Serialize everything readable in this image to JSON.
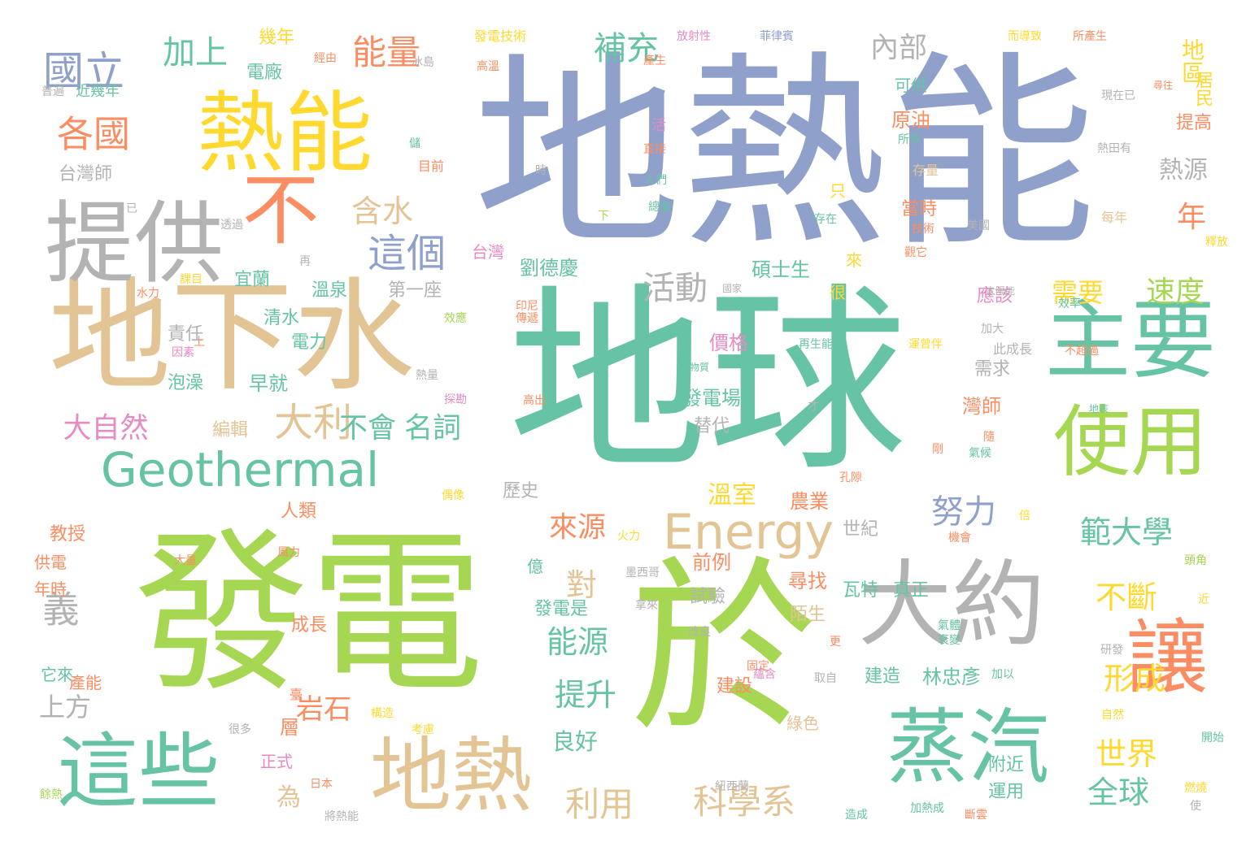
{
  "palette": {
    "blue": "#8fa0cb",
    "teal": "#66c3a5",
    "green": "#a6d753",
    "orange": "#fc8d62",
    "tan": "#e3c595",
    "gray": "#b3b3b3",
    "yellow": "#ffd92f",
    "pink": "#e88ac3"
  },
  "words": [
    {
      "text": "地熱能",
      "color": "blue"
    },
    {
      "text": "地球",
      "color": "teal"
    },
    {
      "text": "發電",
      "color": "green"
    },
    {
      "text": "於",
      "color": "green"
    },
    {
      "text": "熱能",
      "color": "yellow"
    },
    {
      "text": "地下水",
      "color": "tan"
    },
    {
      "text": "提供",
      "color": "gray"
    },
    {
      "text": "不",
      "color": "orange"
    },
    {
      "text": "主要",
      "color": "teal"
    },
    {
      "text": "使用",
      "color": "green"
    },
    {
      "text": "大約",
      "color": "gray"
    },
    {
      "text": "讓",
      "color": "orange"
    },
    {
      "text": "蒸汽",
      "color": "teal"
    },
    {
      "text": "這些",
      "color": "teal"
    },
    {
      "text": "地熱",
      "color": "tan"
    },
    {
      "text": "Geothermal",
      "color": "teal"
    },
    {
      "text": "Energy",
      "color": "tan"
    },
    {
      "text": "國立",
      "color": "blue"
    },
    {
      "text": "加上",
      "color": "teal"
    },
    {
      "text": "能量",
      "color": "orange"
    },
    {
      "text": "補充",
      "color": "teal"
    },
    {
      "text": "內部",
      "color": "gray"
    },
    {
      "text": "各國",
      "color": "orange"
    },
    {
      "text": "這個",
      "color": "blue"
    },
    {
      "text": "含水",
      "color": "tan"
    },
    {
      "text": "大利",
      "color": "tan"
    },
    {
      "text": "活動",
      "color": "gray"
    },
    {
      "text": "需要",
      "color": "yellow"
    },
    {
      "text": "速度",
      "color": "green"
    },
    {
      "text": "範大學",
      "color": "teal"
    },
    {
      "text": "努力",
      "color": "blue"
    },
    {
      "text": "不斷",
      "color": "yellow"
    },
    {
      "text": "形成",
      "color": "yellow"
    },
    {
      "text": "世界",
      "color": "yellow"
    },
    {
      "text": "全球",
      "color": "teal"
    },
    {
      "text": "科學系",
      "color": "tan"
    },
    {
      "text": "利用",
      "color": "tan"
    },
    {
      "text": "能源",
      "color": "teal"
    },
    {
      "text": "提升",
      "color": "teal"
    },
    {
      "text": "對",
      "color": "tan"
    },
    {
      "text": "義",
      "color": "gray"
    },
    {
      "text": "大自然",
      "color": "pink"
    },
    {
      "text": "不會",
      "color": "teal"
    },
    {
      "text": "名詞",
      "color": "teal"
    },
    {
      "text": "地區",
      "color": "yellow"
    },
    {
      "text": "熱源",
      "color": "gray"
    },
    {
      "text": "年",
      "color": "orange"
    },
    {
      "text": "來源",
      "color": "orange"
    },
    {
      "text": "溫室",
      "color": "yellow"
    },
    {
      "text": "岩石",
      "color": "orange"
    },
    {
      "text": "良好",
      "color": "teal"
    },
    {
      "text": "為",
      "color": "tan"
    },
    {
      "text": "上方",
      "color": "gray"
    },
    {
      "text": "教授",
      "color": "orange"
    },
    {
      "text": "台灣師",
      "color": "gray"
    },
    {
      "text": "泡澡",
      "color": "teal"
    },
    {
      "text": "責任",
      "color": "gray"
    },
    {
      "text": "編輯",
      "color": "tan"
    },
    {
      "text": "價格",
      "color": "pink"
    },
    {
      "text": "發電場",
      "color": "teal"
    },
    {
      "text": "碩士生",
      "color": "teal"
    },
    {
      "text": "劉德慶",
      "color": "teal"
    },
    {
      "text": "歷史",
      "color": "gray"
    },
    {
      "text": "林忠彥",
      "color": "teal"
    },
    {
      "text": "建造",
      "color": "teal"
    },
    {
      "text": "灣師",
      "color": "orange"
    },
    {
      "text": "運用",
      "color": "teal"
    },
    {
      "text": "附近",
      "color": "teal"
    },
    {
      "text": "瓦特",
      "color": "teal"
    },
    {
      "text": "真正",
      "color": "teal"
    },
    {
      "text": "尋找",
      "color": "orange"
    },
    {
      "text": "陌生",
      "color": "tan"
    },
    {
      "text": "前例",
      "color": "orange"
    },
    {
      "text": "世紀",
      "color": "gray"
    },
    {
      "text": "農業",
      "color": "orange"
    },
    {
      "text": "替代",
      "color": "gray"
    },
    {
      "text": "應該",
      "color": "pink"
    },
    {
      "text": "需求",
      "color": "gray"
    },
    {
      "text": "原油",
      "color": "orange"
    },
    {
      "text": "當時",
      "color": "orange"
    },
    {
      "text": "居民",
      "color": "yellow"
    },
    {
      "text": "提高",
      "color": "orange"
    },
    {
      "text": "溫泉",
      "color": "teal"
    },
    {
      "text": "宜蘭",
      "color": "teal"
    },
    {
      "text": "第一座",
      "color": "gray"
    },
    {
      "text": "早就",
      "color": "teal"
    },
    {
      "text": "電力",
      "color": "teal"
    },
    {
      "text": "清水",
      "color": "teal"
    },
    {
      "text": "人類",
      "color": "orange"
    },
    {
      "text": "成長",
      "color": "orange"
    },
    {
      "text": "試驗",
      "color": "gray"
    },
    {
      "text": "發電是",
      "color": "teal"
    },
    {
      "text": "億",
      "color": "teal"
    },
    {
      "text": "建設",
      "color": "orange"
    },
    {
      "text": "綠色",
      "color": "tan"
    },
    {
      "text": "層",
      "color": "orange"
    },
    {
      "text": "正式",
      "color": "pink"
    },
    {
      "text": "供電",
      "color": "orange"
    },
    {
      "text": "年時",
      "color": "orange"
    },
    {
      "text": "它來",
      "color": "teal"
    },
    {
      "text": "產能",
      "color": "orange"
    },
    {
      "text": "近幾年",
      "color": "teal"
    },
    {
      "text": "幾年",
      "color": "yellow"
    },
    {
      "text": "電廠",
      "color": "teal"
    },
    {
      "text": "可供",
      "color": "teal"
    },
    {
      "text": "台灣",
      "color": "pink"
    },
    {
      "text": "來",
      "color": "yellow"
    },
    {
      "text": "很",
      "color": "yellow"
    },
    {
      "text": "再生能源",
      "color": "teal"
    },
    {
      "text": "只",
      "color": "yellow"
    },
    {
      "text": "技術",
      "color": "orange"
    },
    {
      "text": "每年",
      "color": "tan"
    },
    {
      "text": "存量",
      "color": "tan"
    },
    {
      "text": "活",
      "color": "pink"
    },
    {
      "text": "目前",
      "color": "orange"
    },
    {
      "text": "直接",
      "color": "orange"
    },
    {
      "text": "產生",
      "color": "orange"
    },
    {
      "text": "效率",
      "color": "teal"
    },
    {
      "text": "此成長",
      "color": "gray"
    },
    {
      "text": "加大",
      "color": "gray"
    },
    {
      "text": "運曾伴",
      "color": "yellow"
    },
    {
      "text": "不超過",
      "color": "orange"
    },
    {
      "text": "地表",
      "color": "teal"
    },
    {
      "text": "發電技術",
      "color": "yellow"
    },
    {
      "text": "放射性",
      "color": "pink"
    },
    {
      "text": "菲律賓",
      "color": "blue"
    },
    {
      "text": "而導致",
      "color": "yellow"
    },
    {
      "text": "所產生",
      "color": "orange"
    },
    {
      "text": "經由",
      "color": "orange"
    },
    {
      "text": "高溫",
      "color": "orange"
    },
    {
      "text": "冰島",
      "color": "gray"
    },
    {
      "text": "現在已",
      "color": "gray"
    },
    {
      "text": "尋往",
      "color": "orange"
    },
    {
      "text": "熱田有",
      "color": "gray"
    },
    {
      "text": "人們",
      "color": "teal"
    },
    {
      "text": "總量",
      "color": "teal"
    },
    {
      "text": "存在",
      "color": "teal"
    },
    {
      "text": "美國",
      "color": "gray"
    },
    {
      "text": "觀它",
      "color": "orange"
    },
    {
      "text": "釋放",
      "color": "yellow"
    },
    {
      "text": "國家",
      "color": "gray"
    },
    {
      "text": "課目",
      "color": "yellow"
    },
    {
      "text": "水力",
      "color": "orange"
    },
    {
      "text": "傳遞",
      "color": "orange"
    },
    {
      "text": "印尼",
      "color": "orange"
    },
    {
      "text": "效應",
      "color": "green"
    },
    {
      "text": "因素",
      "color": "pink"
    },
    {
      "text": "上",
      "color": "orange"
    },
    {
      "text": "熱量",
      "color": "gray"
    },
    {
      "text": "探勘",
      "color": "pink"
    },
    {
      "text": "高出",
      "color": "orange"
    },
    {
      "text": "物質",
      "color": "teal"
    },
    {
      "text": "才",
      "color": "gray"
    },
    {
      "text": "太陽能",
      "color": "gray"
    },
    {
      "text": "氣候",
      "color": "teal"
    },
    {
      "text": "剛",
      "color": "orange"
    },
    {
      "text": "孔隙",
      "color": "orange"
    },
    {
      "text": "偶像",
      "color": "yellow"
    },
    {
      "text": "火力",
      "color": "yellow"
    },
    {
      "text": "風力",
      "color": "orange"
    },
    {
      "text": "大量",
      "color": "orange"
    },
    {
      "text": "墨西哥",
      "color": "gray"
    },
    {
      "text": "拿來",
      "color": "gray"
    },
    {
      "text": "機會",
      "color": "orange"
    },
    {
      "text": "倍",
      "color": "yellow"
    },
    {
      "text": "頭角",
      "color": "green"
    },
    {
      "text": "研發",
      "color": "gray"
    },
    {
      "text": "氣體",
      "color": "teal"
    },
    {
      "text": "衰變",
      "color": "teal"
    },
    {
      "text": "改良",
      "color": "gray"
    },
    {
      "text": "更",
      "color": "orange"
    },
    {
      "text": "取自",
      "color": "gray"
    },
    {
      "text": "加以",
      "color": "teal"
    },
    {
      "text": "自然",
      "color": "yellow"
    },
    {
      "text": "臺",
      "color": "orange"
    },
    {
      "text": "固定",
      "color": "orange"
    },
    {
      "text": "蘊含",
      "color": "pink"
    },
    {
      "text": "開始",
      "color": "teal"
    },
    {
      "text": "構造",
      "color": "yellow"
    },
    {
      "text": "很多",
      "color": "gray"
    },
    {
      "text": "考慮",
      "color": "yellow"
    },
    {
      "text": "日本",
      "color": "orange"
    },
    {
      "text": "紐西蘭",
      "color": "gray"
    },
    {
      "text": "燃燒",
      "color": "yellow"
    },
    {
      "text": "使",
      "color": "gray"
    },
    {
      "text": "將熱能",
      "color": "gray"
    },
    {
      "text": "餘熱",
      "color": "green"
    },
    {
      "text": "造成",
      "color": "teal"
    },
    {
      "text": "加熱成",
      "color": "teal"
    },
    {
      "text": "斷雲",
      "color": "orange"
    },
    {
      "text": "普遍",
      "color": "gray"
    },
    {
      "text": "已",
      "color": "gray"
    },
    {
      "text": "透過",
      "color": "gray"
    },
    {
      "text": "再",
      "color": "gray"
    },
    {
      "text": "所得",
      "color": "teal"
    },
    {
      "text": "時",
      "color": "gray"
    },
    {
      "text": "儲",
      "color": "teal"
    },
    {
      "text": "下",
      "color": "green"
    },
    {
      "text": "隨",
      "color": "orange"
    },
    {
      "text": "近",
      "color": "yellow"
    }
  ]
}
